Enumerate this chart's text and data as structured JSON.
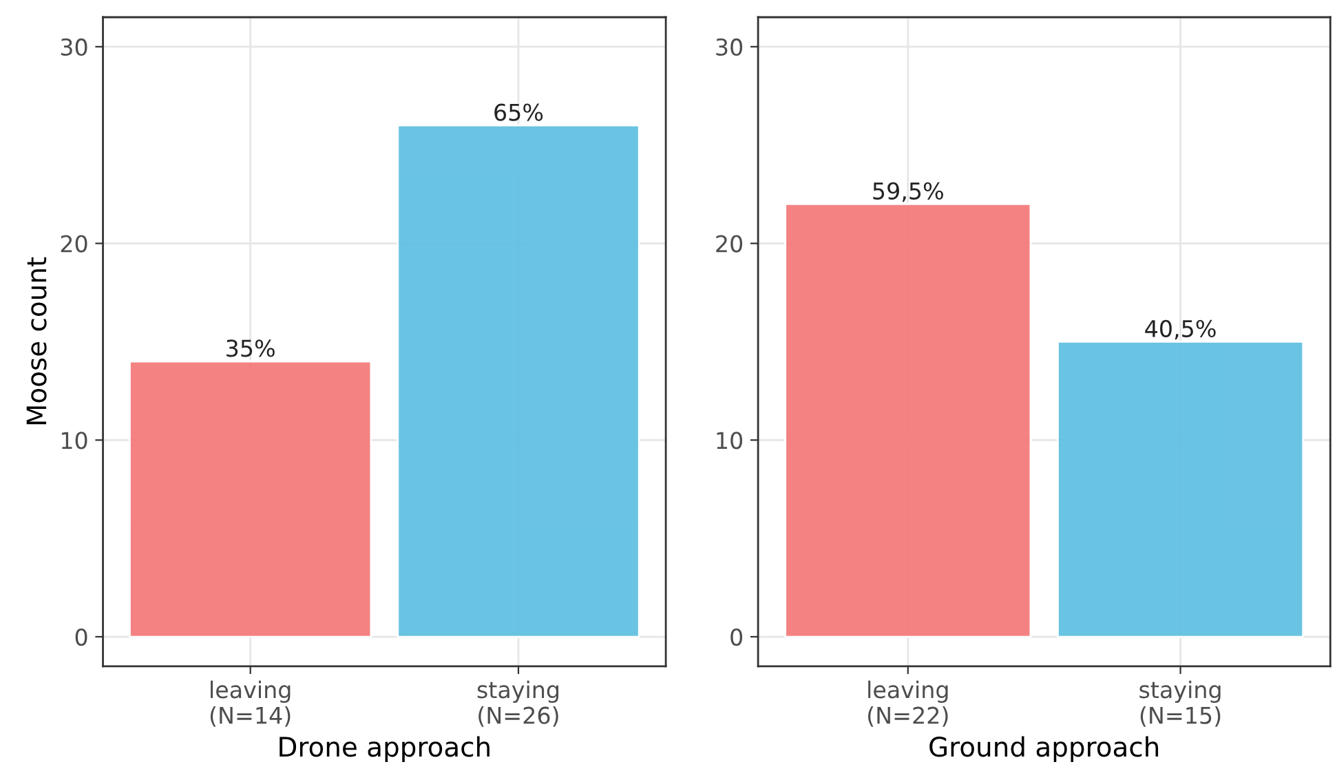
{
  "chart_data": [
    {
      "type": "bar",
      "xlabel": "Drone approach",
      "ylabel": "Moose count",
      "categories": [
        "leaving\n(N=14)",
        "staying\n(N=26)"
      ],
      "values": [
        14,
        26
      ],
      "colors": [
        "#f47c7c",
        "#62c0e1"
      ],
      "annotations": [
        {
          "text": "35%",
          "x": "leaving\n(N=14)",
          "y": 14
        },
        {
          "text": "65%",
          "x": "staying\n(N=26)",
          "y": 26
        }
      ],
      "ylim": [
        -1.5,
        31.5
      ],
      "yticks": [
        0,
        10,
        20,
        30
      ],
      "grid": true
    },
    {
      "type": "bar",
      "xlabel": "Ground approach",
      "categories": [
        "leaving\n(N=22)",
        "staying\n(N=15)"
      ],
      "values": [
        22,
        15
      ],
      "colors": [
        "#f47c7c",
        "#62c0e1"
      ],
      "annotations": [
        {
          "text": "59,5%",
          "x": "leaving\n(N=22)",
          "y": 22
        },
        {
          "text": "40,5%",
          "x": "staying\n(N=15)",
          "y": 15
        }
      ],
      "ylim": [
        -1.5,
        31.5
      ],
      "yticks": [
        0,
        10,
        20,
        30
      ],
      "grid": true
    }
  ]
}
